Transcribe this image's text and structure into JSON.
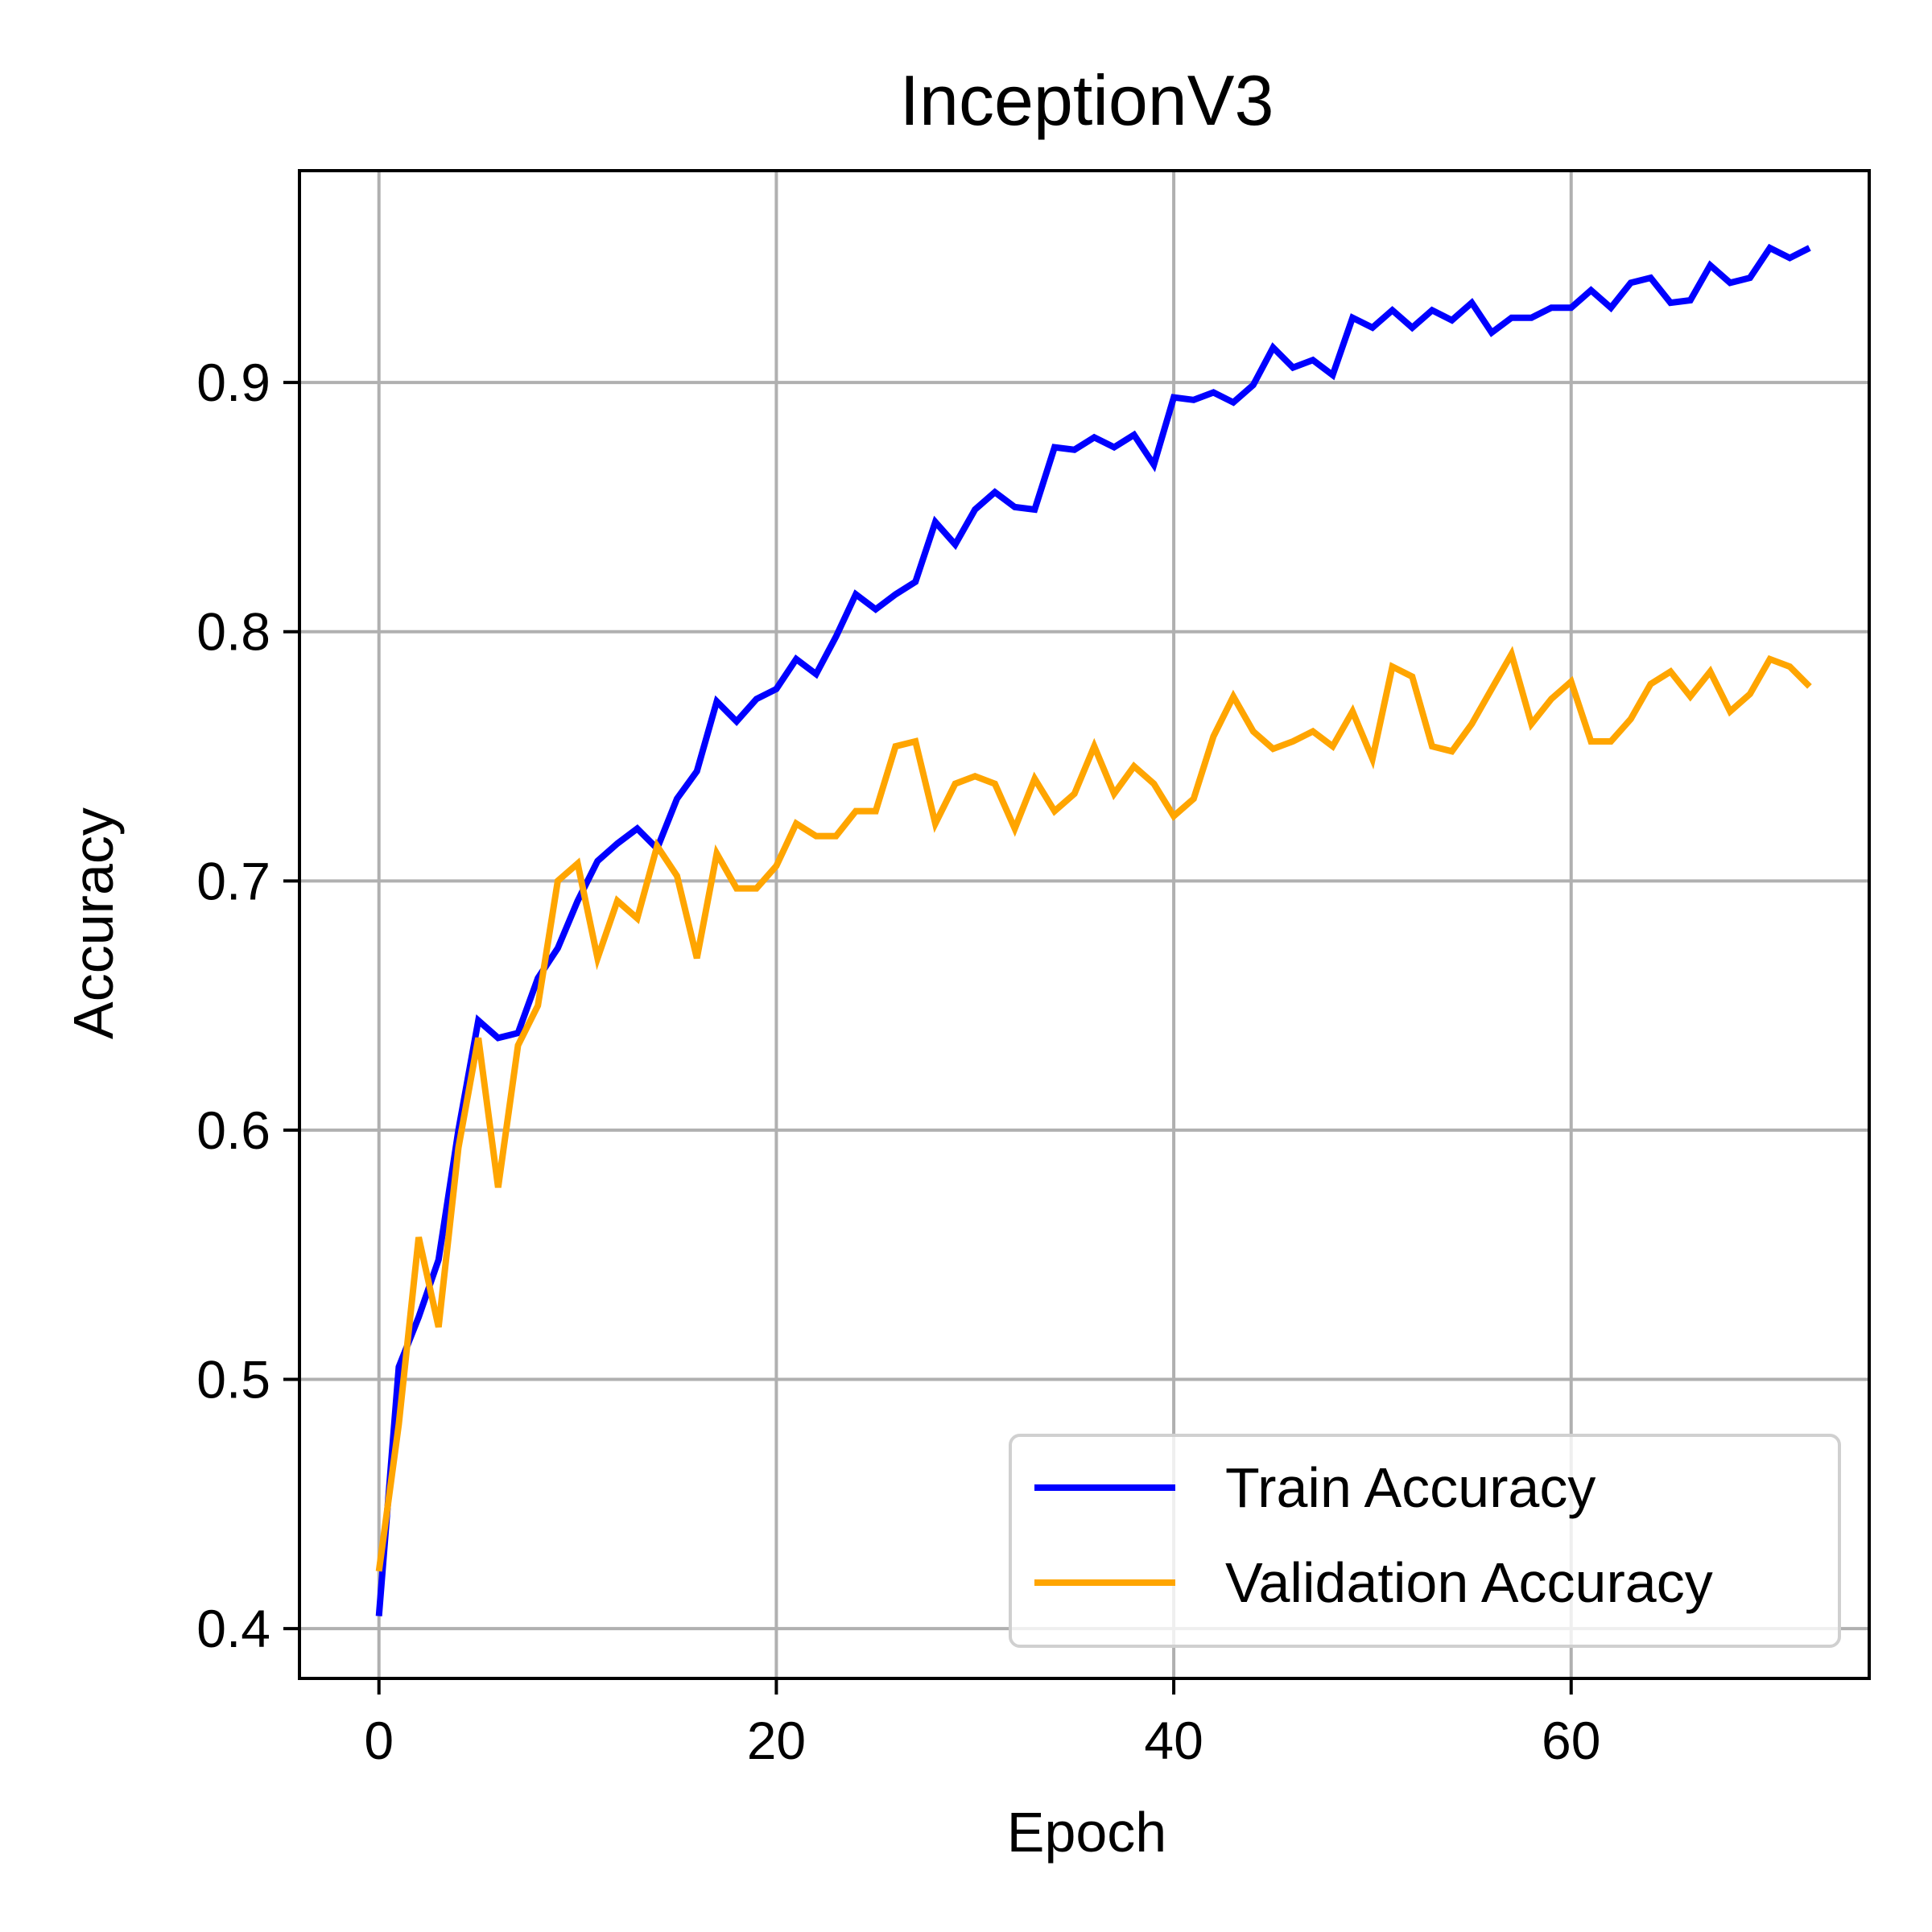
{
  "chart_data": {
    "type": "line",
    "title": "InceptionV3",
    "xlabel": "Epoch",
    "ylabel": "Accuracy",
    "xlim": [
      -4,
      75
    ],
    "ylim": [
      0.38,
      0.985
    ],
    "grid": true,
    "legend_position": "lower-right",
    "x_ticks": [
      0,
      20,
      40,
      60
    ],
    "x_tick_labels": [
      "0",
      "20",
      "40",
      "60"
    ],
    "y_ticks": [
      0.4,
      0.5,
      0.6,
      0.7,
      0.8,
      0.9
    ],
    "y_tick_labels": [
      "0.4",
      "0.5",
      "0.6",
      "0.7",
      "0.8",
      "0.9"
    ],
    "series": [
      {
        "name": "Train Accuracy",
        "color": "#0000ff",
        "x": [
          0,
          1,
          2,
          3,
          4,
          5,
          6,
          7,
          8,
          9,
          10,
          11,
          12,
          13,
          14,
          15,
          16,
          17,
          18,
          19,
          20,
          21,
          22,
          23,
          24,
          25,
          26,
          27,
          28,
          29,
          30,
          31,
          32,
          33,
          34,
          35,
          36,
          37,
          38,
          39,
          40,
          41,
          42,
          43,
          44,
          45,
          46,
          47,
          48,
          49,
          50,
          51,
          52,
          53,
          54,
          55,
          56,
          57,
          58,
          59,
          60,
          61,
          62,
          63,
          64,
          65,
          66,
          67,
          68,
          69,
          70,
          71,
          72
        ],
        "values": [
          0.405,
          0.505,
          0.525,
          0.548,
          0.6,
          0.644,
          0.637,
          0.639,
          0.661,
          0.673,
          0.692,
          0.708,
          0.715,
          0.721,
          0.713,
          0.733,
          0.744,
          0.772,
          0.764,
          0.773,
          0.777,
          0.789,
          0.783,
          0.798,
          0.815,
          0.809,
          0.815,
          0.82,
          0.844,
          0.835,
          0.849,
          0.856,
          0.85,
          0.849,
          0.874,
          0.873,
          0.878,
          0.874,
          0.879,
          0.867,
          0.894,
          0.893,
          0.896,
          0.892,
          0.899,
          0.914,
          0.906,
          0.909,
          0.903,
          0.926,
          0.922,
          0.929,
          0.922,
          0.929,
          0.925,
          0.932,
          0.92,
          0.926,
          0.926,
          0.93,
          0.93,
          0.937,
          0.93,
          0.94,
          0.942,
          0.932,
          0.933,
          0.947,
          0.94,
          0.942,
          0.954,
          0.95,
          0.954
        ]
      },
      {
        "name": "Validation Accuracy",
        "color": "#ffa500",
        "x": [
          0,
          1,
          2,
          3,
          4,
          5,
          6,
          7,
          8,
          9,
          10,
          11,
          12,
          13,
          14,
          15,
          16,
          17,
          18,
          19,
          20,
          21,
          22,
          23,
          24,
          25,
          26,
          27,
          28,
          29,
          30,
          31,
          32,
          33,
          34,
          35,
          36,
          37,
          38,
          39,
          40,
          41,
          42,
          43,
          44,
          45,
          46,
          47,
          48,
          49,
          50,
          51,
          52,
          53,
          54,
          55,
          56,
          57,
          58,
          59,
          60,
          61,
          62,
          63,
          64,
          65,
          66,
          67,
          68,
          69,
          70,
          71,
          72
        ],
        "values": [
          0.423,
          0.482,
          0.557,
          0.521,
          0.593,
          0.637,
          0.577,
          0.634,
          0.65,
          0.7,
          0.707,
          0.669,
          0.692,
          0.685,
          0.714,
          0.702,
          0.669,
          0.711,
          0.697,
          0.697,
          0.706,
          0.723,
          0.718,
          0.718,
          0.728,
          0.728,
          0.754,
          0.756,
          0.723,
          0.739,
          0.742,
          0.739,
          0.721,
          0.741,
          0.728,
          0.735,
          0.754,
          0.735,
          0.746,
          0.739,
          0.726,
          0.733,
          0.758,
          0.774,
          0.76,
          0.753,
          0.756,
          0.76,
          0.754,
          0.768,
          0.749,
          0.786,
          0.782,
          0.754,
          0.752,
          0.763,
          0.777,
          0.791,
          0.763,
          0.773,
          0.78,
          0.756,
          0.756,
          0.765,
          0.779,
          0.784,
          0.774,
          0.784,
          0.768,
          0.775,
          0.789,
          0.786,
          0.778
        ]
      }
    ]
  }
}
